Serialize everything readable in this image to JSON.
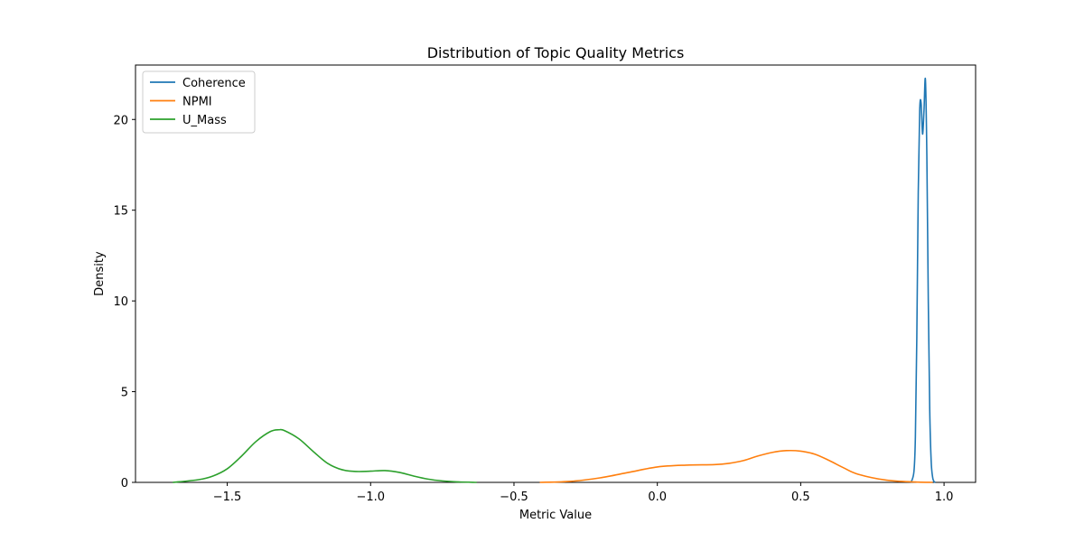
{
  "chart_data": {
    "type": "line",
    "title": "Distribution of Topic Quality Metrics",
    "xlabel": "Metric Value",
    "ylabel": "Density",
    "xlim": [
      -1.82,
      1.11
    ],
    "ylim": [
      0,
      23.0
    ],
    "x_ticks": [
      -1.5,
      -1.0,
      -0.5,
      0.0,
      0.5,
      1.0
    ],
    "x_tick_labels": [
      "−1.5",
      "−1.0",
      "−0.5",
      "0.0",
      "0.5",
      "1.0"
    ],
    "y_ticks": [
      0,
      5,
      10,
      15,
      20
    ],
    "y_tick_labels": [
      "0",
      "5",
      "10",
      "15",
      "20"
    ],
    "grid": false,
    "legend_position": "top-left",
    "series": [
      {
        "name": "Coherence",
        "color": "#1f77b4",
        "x": [
          0.885,
          0.895,
          0.9,
          0.905,
          0.91,
          0.915,
          0.92,
          0.925,
          0.93,
          0.935,
          0.94,
          0.945,
          0.95,
          0.955,
          0.96,
          0.965,
          0.97
        ],
        "y": [
          0.0,
          0.6,
          2.5,
          8.0,
          16.0,
          20.5,
          20.9,
          19.2,
          20.5,
          22.2,
          18.0,
          10.0,
          4.0,
          1.2,
          0.3,
          0.05,
          0.0
        ]
      },
      {
        "name": "NPMI",
        "color": "#ff7f0e",
        "x": [
          -0.41,
          -0.3,
          -0.2,
          -0.1,
          0.0,
          0.1,
          0.2,
          0.25,
          0.3,
          0.35,
          0.4,
          0.45,
          0.5,
          0.55,
          0.6,
          0.65,
          0.7,
          0.8,
          0.9,
          0.96
        ],
        "y": [
          0.0,
          0.06,
          0.25,
          0.55,
          0.85,
          0.95,
          0.98,
          1.05,
          1.2,
          1.45,
          1.65,
          1.75,
          1.72,
          1.55,
          1.2,
          0.8,
          0.45,
          0.12,
          0.02,
          0.0
        ]
      },
      {
        "name": "U_Mass",
        "color": "#2ca02c",
        "x": [
          -1.69,
          -1.6,
          -1.55,
          -1.5,
          -1.45,
          -1.4,
          -1.35,
          -1.32,
          -1.3,
          -1.25,
          -1.2,
          -1.15,
          -1.1,
          -1.05,
          -1.0,
          -0.95,
          -0.9,
          -0.85,
          -0.8,
          -0.75,
          -0.7,
          -0.63
        ],
        "y": [
          0.0,
          0.15,
          0.35,
          0.75,
          1.45,
          2.25,
          2.8,
          2.9,
          2.85,
          2.4,
          1.7,
          1.05,
          0.7,
          0.6,
          0.62,
          0.65,
          0.55,
          0.35,
          0.18,
          0.08,
          0.03,
          0.0
        ]
      }
    ]
  }
}
